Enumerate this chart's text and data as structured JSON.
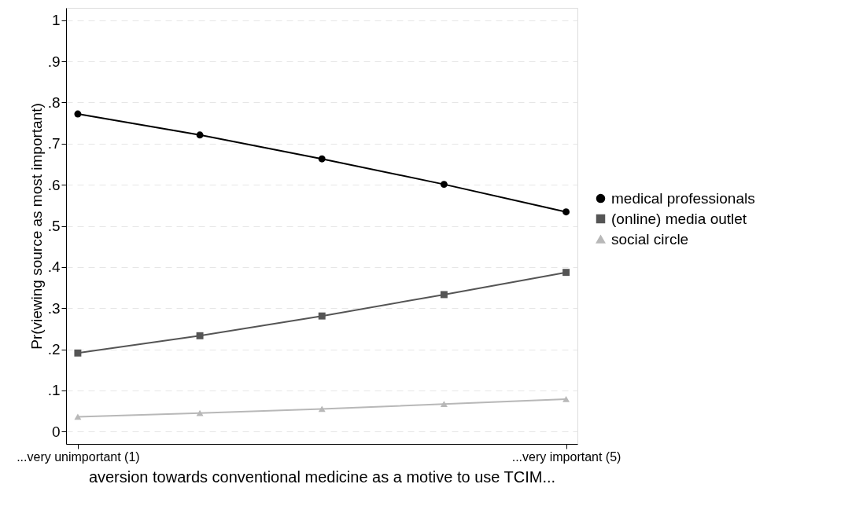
{
  "chart_data": {
    "type": "line",
    "xlabel": "aversion towards conventional medicine as a motive to use TCIM...",
    "ylabel": "Pr(viewing source as most important)",
    "x": [
      1,
      2,
      3,
      4,
      5
    ],
    "series": [
      {
        "name": "medical professionals",
        "color": "#000000",
        "marker": "circle",
        "values": [
          0.772,
          0.721,
          0.663,
          0.601,
          0.534
        ]
      },
      {
        "name": "(online) media outlet",
        "color": "#555555",
        "marker": "square",
        "values": [
          0.191,
          0.233,
          0.281,
          0.333,
          0.387
        ]
      },
      {
        "name": "social circle",
        "color": "#b8b8b8",
        "marker": "triangle",
        "values": [
          0.036,
          0.045,
          0.055,
          0.067,
          0.079
        ]
      }
    ],
    "xlim": [
      0.904,
      5.093
    ],
    "xticks": [
      {
        "value": 1,
        "label": "...very unimportant (1)"
      },
      {
        "value": 5,
        "label": "...very important (5)"
      }
    ],
    "ylim": [
      -0.03,
      1.03
    ],
    "yticks": [
      0,
      {
        "value": 0.1,
        "label": ".1"
      },
      {
        "value": 0.2,
        "label": ".2"
      },
      {
        "value": 0.3,
        "label": ".3"
      },
      {
        "value": 0.4,
        "label": ".4"
      },
      {
        "value": 0.5,
        "label": ".5"
      },
      {
        "value": 0.6,
        "label": ".6"
      },
      {
        "value": 0.7,
        "label": ".7"
      },
      {
        "value": 0.8,
        "label": ".8"
      },
      {
        "value": 0.9,
        "label": ".9"
      },
      1
    ],
    "grid": "y",
    "legend": "right",
    "line_style": "solid"
  }
}
